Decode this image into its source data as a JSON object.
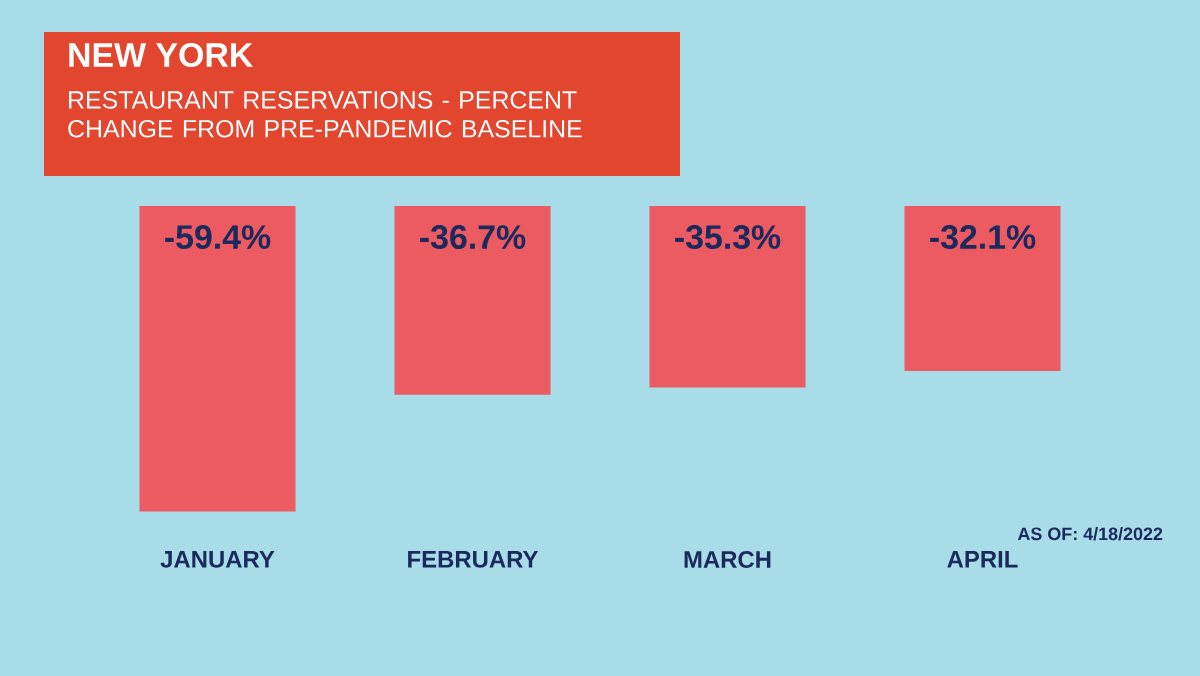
{
  "chart_data": {
    "type": "bar",
    "title": "NEW YORK",
    "subtitle": "RESTAURANT RESERVATIONS - PERCENT CHANGE FROM PRE-PANDEMIC BASELINE",
    "categories": [
      "JANUARY",
      "FEBRUARY",
      "MARCH",
      "APRIL"
    ],
    "values": [
      -59.4,
      -36.7,
      -35.3,
      -32.1
    ],
    "value_labels": [
      "-59.4%",
      "-36.7%",
      "-35.3%",
      "-32.1%"
    ],
    "color": "#ec5a62",
    "annotations": [
      "AS OF: 4/18/2022"
    ]
  }
}
